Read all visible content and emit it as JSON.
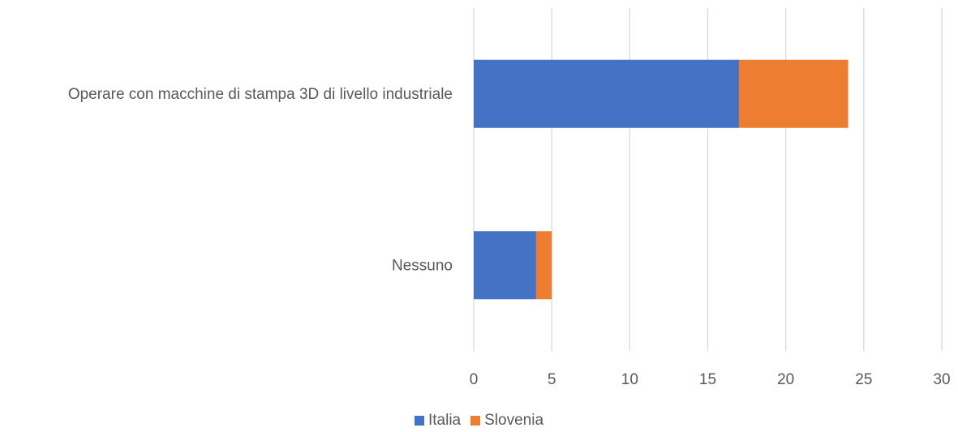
{
  "chart_data": {
    "type": "bar",
    "orientation": "horizontal",
    "stacked": true,
    "categories": [
      "Operare con macchine di stampa 3D di livello industriale",
      "Nessuno"
    ],
    "series": [
      {
        "name": "Italia",
        "values": [
          17,
          4
        ],
        "color": "#4472C4"
      },
      {
        "name": "Slovenia",
        "values": [
          7,
          1
        ],
        "color": "#ED7D31"
      }
    ],
    "xlim": [
      0,
      30
    ],
    "xticks": [
      "0",
      "5",
      "10",
      "15",
      "20",
      "25",
      "30"
    ],
    "grid": "vertical",
    "legend_position": "bottom",
    "title": "",
    "xlabel": "",
    "ylabel": ""
  }
}
